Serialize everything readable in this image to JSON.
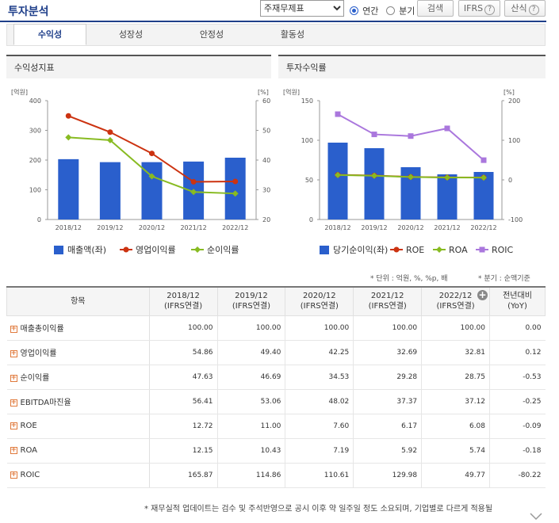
{
  "header": {
    "title": "투자분석",
    "select_value": "주재무제표",
    "period_annual": "연간",
    "period_quarter": "분기",
    "search_label": "검색",
    "ifrs_label": "IFRS",
    "formula_label": "산식",
    "help_glyph": "?"
  },
  "tabs": [
    "수익성",
    "성장성",
    "안정성",
    "활동성"
  ],
  "left_panel": {
    "title": "수익성지표"
  },
  "right_panel": {
    "title": "투자수익률"
  },
  "chart_data": [
    {
      "type": "bar+line",
      "title": "수익성지표",
      "categories": [
        "2018/12",
        "2019/12",
        "2020/12",
        "2021/12",
        "2022/12"
      ],
      "left_unit": "[억원]",
      "right_unit": "[%]",
      "ylim_left": [
        0,
        400
      ],
      "yticks_left": [
        "0",
        "100",
        "200",
        "300",
        "400"
      ],
      "ylim_right": [
        20,
        60
      ],
      "yticks_right": [
        "20",
        "30",
        "40",
        "50",
        "60"
      ],
      "bars": {
        "name": "매출액(좌)",
        "color": "#2a5fcc",
        "values": [
          203,
          193,
          193,
          195,
          208
        ]
      },
      "lines": [
        {
          "name": "영업이익률",
          "color": "#cc3311",
          "values": [
            54.86,
            49.4,
            42.25,
            32.69,
            32.81
          ]
        },
        {
          "name": "순이익률",
          "color": "#88bb22",
          "values": [
            47.63,
            46.69,
            34.53,
            29.28,
            28.75
          ]
        }
      ]
    },
    {
      "type": "bar+line",
      "title": "투자수익률",
      "categories": [
        "2018/12",
        "2019/12",
        "2020/12",
        "2021/12",
        "2022/12"
      ],
      "left_unit": "[억원]",
      "right_unit": "[%]",
      "ylim_left": [
        0,
        150
      ],
      "yticks_left": [
        "0",
        "50",
        "100",
        "150"
      ],
      "ylim_right": [
        -100,
        200
      ],
      "yticks_right": [
        "-100",
        "0",
        "100",
        "200"
      ],
      "bars": {
        "name": "당기순이익(좌)",
        "color": "#2a5fcc",
        "values": [
          97,
          90,
          66,
          57,
          60
        ]
      },
      "lines": [
        {
          "name": "ROE",
          "color": "#cc3311",
          "values": [
            12.72,
            11.0,
            7.6,
            6.17,
            6.08
          ]
        },
        {
          "name": "ROA",
          "color": "#88bb22",
          "values": [
            12.15,
            10.43,
            7.19,
            5.92,
            5.74
          ]
        },
        {
          "name": "ROIC",
          "color": "#aa77dd",
          "values": [
            165.87,
            114.86,
            110.61,
            129.98,
            49.77
          ]
        }
      ]
    }
  ],
  "notes": {
    "unit": "* 단위 : 억원, %, %p, 배",
    "quarter": "* 분기 : 순액기준"
  },
  "table": {
    "item_header": "항목",
    "columns": [
      {
        "period": "2018/12",
        "basis": "(IFRS연결)"
      },
      {
        "period": "2019/12",
        "basis": "(IFRS연결)"
      },
      {
        "period": "2020/12",
        "basis": "(IFRS연결)"
      },
      {
        "period": "2021/12",
        "basis": "(IFRS연결)"
      },
      {
        "period": "2022/12",
        "basis": "(IFRS연결)"
      }
    ],
    "yoy_header": "전년대비",
    "yoy_sub": "(YoY)",
    "rows": [
      {
        "label": "매출총이익률",
        "values": [
          "100.00",
          "100.00",
          "100.00",
          "100.00",
          "100.00"
        ],
        "yoy": "0.00"
      },
      {
        "label": "영업이익률",
        "values": [
          "54.86",
          "49.40",
          "42.25",
          "32.69",
          "32.81"
        ],
        "yoy": "0.12"
      },
      {
        "label": "순이익률",
        "values": [
          "47.63",
          "46.69",
          "34.53",
          "29.28",
          "28.75"
        ],
        "yoy": "-0.53"
      },
      {
        "label": "EBITDA마진율",
        "values": [
          "56.41",
          "53.06",
          "48.02",
          "37.37",
          "37.12"
        ],
        "yoy": "-0.25"
      },
      {
        "label": "ROE",
        "values": [
          "12.72",
          "11.00",
          "7.60",
          "6.17",
          "6.08"
        ],
        "yoy": "-0.09"
      },
      {
        "label": "ROA",
        "values": [
          "12.15",
          "10.43",
          "7.19",
          "5.92",
          "5.74"
        ],
        "yoy": "-0.18"
      },
      {
        "label": "ROIC",
        "values": [
          "165.87",
          "114.86",
          "110.61",
          "129.98",
          "49.77"
        ],
        "yoy": "-80.22"
      }
    ]
  },
  "footer": "* 재무실적 업데이트는 검수 및 주석반영으로 공시 이후 약 일주일 정도 소요되며, 기업별로 다르게 적용될"
}
